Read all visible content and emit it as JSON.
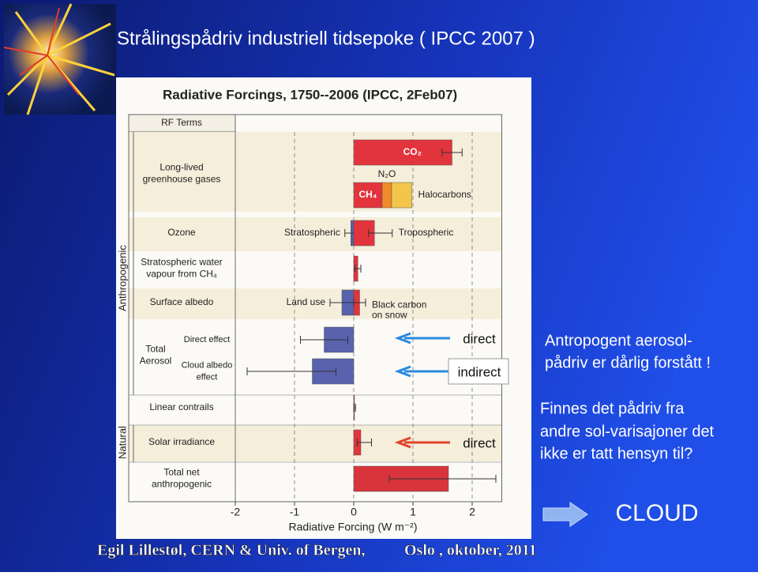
{
  "slide": {
    "title": "Strålingspådriv industriell tidsepoke ( IPCC 2007 )",
    "note1": [
      "Antropogent aerosol-",
      "pådriv er dårlig forstått !"
    ],
    "note2": [
      "Finnes det pådriv fra",
      "andre sol-varisajoner det",
      "ikke er tatt hensyn til?"
    ],
    "cloud": "CLOUD",
    "footer": {
      "left": "Egil Lillestøl, CERN & Univ. of Bergen,",
      "right": "Oslo , oktober, 2011"
    }
  },
  "chart_data": {
    "type": "bar",
    "orientation": "horizontal",
    "title": "Radiative Forcings, 1750--2006 (IPCC, 2Feb07)",
    "header": "RF Terms",
    "xlabel": "Radiative Forcing (W m⁻²)",
    "xlim": [
      -2,
      2.5
    ],
    "xticks": [
      -2,
      -1,
      0,
      1,
      2
    ],
    "grid": true,
    "annotations": [
      "direct",
      "indirect",
      "direct"
    ],
    "groups": [
      {
        "name": "Anthropogenic",
        "terms": [
          {
            "label": [
              "Long-lived",
              "greenhouse gases"
            ],
            "rows": [
              {
                "bars": [
                  {
                    "name": "CO₂",
                    "value": 1.66,
                    "range": [
                      1.49,
                      1.83
                    ],
                    "color": "#e2343c"
                  }
                ]
              },
              {
                "bars": [
                  {
                    "name": "CH₄",
                    "value": 0.48,
                    "color": "#e2343c"
                  },
                  {
                    "name": "N₂O",
                    "value": 0.16,
                    "color": "#f08a2a"
                  },
                  {
                    "name": "Halocarbons",
                    "value": 0.34,
                    "color": "#f3c64a"
                  }
                ]
              }
            ]
          },
          {
            "label": [
              "Ozone"
            ],
            "rows": [
              {
                "bars": [
                  {
                    "name": "Stratospheric",
                    "value": -0.05,
                    "range": [
                      -0.15,
                      0.05
                    ],
                    "color": "#5862ad"
                  },
                  {
                    "name": "Tropospheric",
                    "value": 0.35,
                    "range": [
                      0.25,
                      0.65
                    ],
                    "color": "#e2343c"
                  }
                ]
              }
            ]
          },
          {
            "label": [
              "Stratospheric water",
              "vapour from CH₄"
            ],
            "rows": [
              {
                "bars": [
                  {
                    "value": 0.07,
                    "range": [
                      0.02,
                      0.12
                    ],
                    "color": "#e2343c"
                  }
                ]
              }
            ]
          },
          {
            "label": [
              "Surface albedo"
            ],
            "rows": [
              {
                "bars": [
                  {
                    "name": [
                      "Land use"
                    ],
                    "value": -0.2,
                    "range": [
                      -0.4,
                      0.0
                    ],
                    "color": "#5862ad"
                  },
                  {
                    "name": [
                      "Black carbon",
                      "on snow"
                    ],
                    "value": 0.1,
                    "range": [
                      0.0,
                      0.2
                    ],
                    "color": "#e2343c"
                  }
                ]
              }
            ]
          },
          {
            "label": [
              "Total",
              "Aerosol"
            ],
            "rows": [
              {
                "label": [
                  "Direct effect"
                ],
                "bars": [
                  {
                    "value": -0.5,
                    "range": [
                      -0.9,
                      -0.1
                    ],
                    "color": "#5862ad"
                  }
                ]
              },
              {
                "label": [
                  "Cloud albedo",
                  "effect"
                ],
                "bars": [
                  {
                    "value": -0.7,
                    "range": [
                      -1.8,
                      -0.3
                    ],
                    "color": "#5862ad"
                  }
                ]
              }
            ]
          },
          {
            "label": [
              "Linear contrails"
            ],
            "rows": [
              {
                "bars": [
                  {
                    "value": 0.01,
                    "range": [
                      0.003,
                      0.03
                    ],
                    "color": "#e2343c"
                  }
                ]
              }
            ]
          }
        ]
      },
      {
        "name": "Natural",
        "terms": [
          {
            "label": [
              "Solar irradiance"
            ],
            "rows": [
              {
                "bars": [
                  {
                    "value": 0.12,
                    "range": [
                      0.06,
                      0.3
                    ],
                    "color": "#e2343c"
                  }
                ]
              }
            ]
          }
        ]
      }
    ],
    "total": {
      "label": [
        "Total net",
        "anthropogenic"
      ],
      "rows": [
        {
          "bars": [
            {
              "value": 1.6,
              "range": [
                0.6,
                2.4
              ],
              "color": "#d9343c"
            }
          ]
        }
      ]
    }
  }
}
